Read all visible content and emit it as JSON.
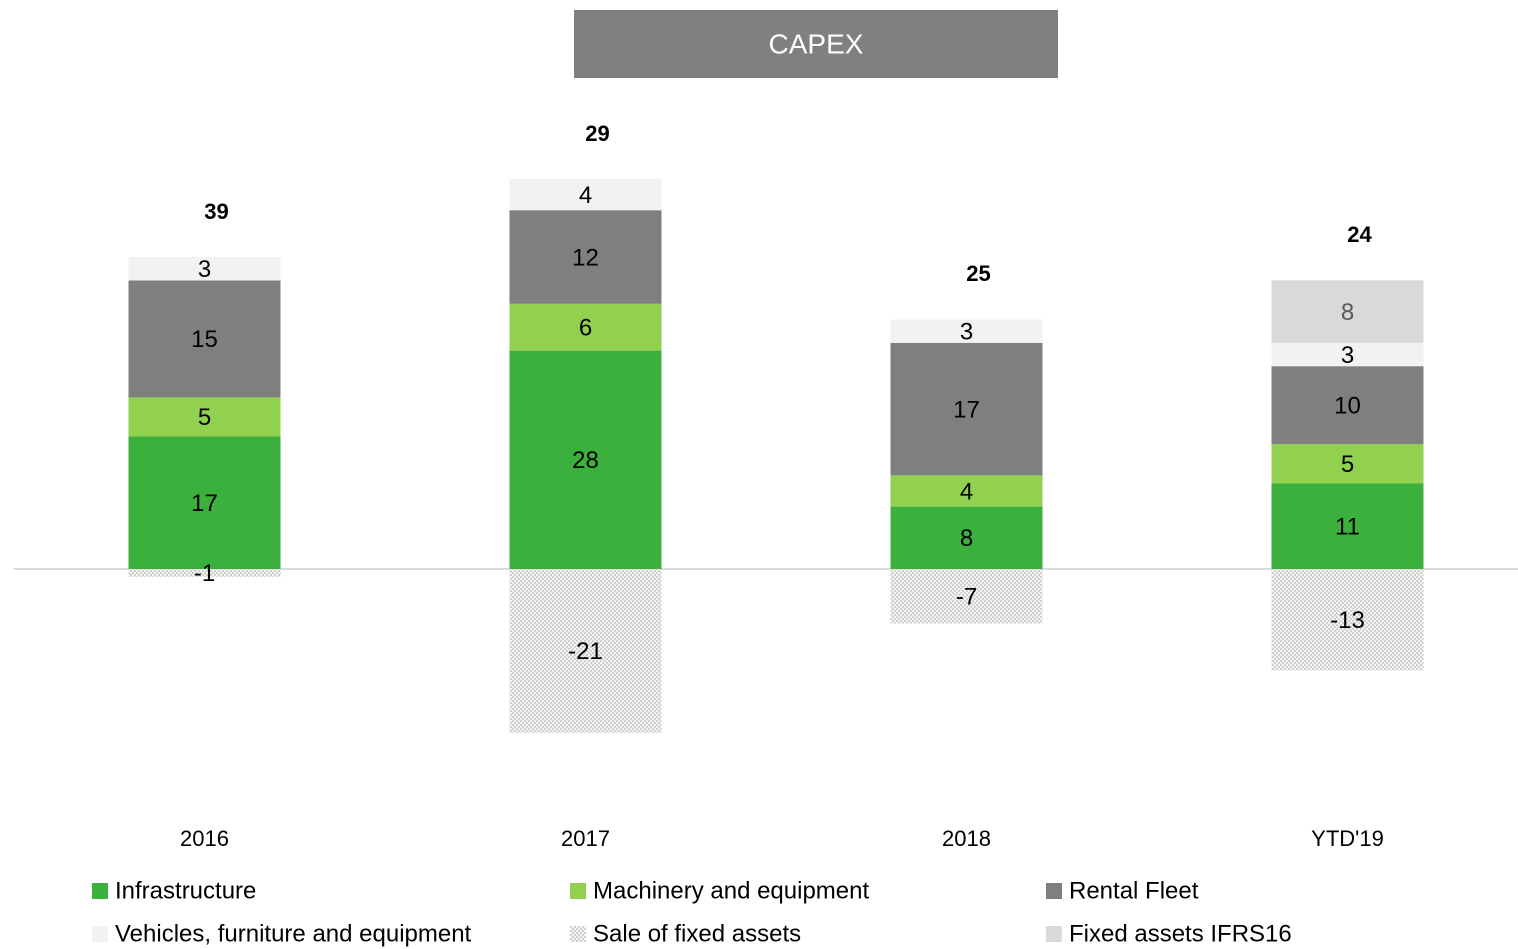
{
  "chart_data": {
    "type": "stacked-bar",
    "title": "CAPEX",
    "categories": [
      "2016",
      "2017",
      "2018",
      "YTD'19"
    ],
    "series": [
      {
        "name": "Infrastructure",
        "color": "#3cb03c",
        "values": [
          17,
          28,
          8,
          11
        ]
      },
      {
        "name": "Machinery and equipment",
        "color": "#92d050",
        "values": [
          5,
          6,
          4,
          5
        ]
      },
      {
        "name": "Rental Fleet",
        "color": "#7f7f7f",
        "values": [
          15,
          12,
          17,
          10
        ]
      },
      {
        "name": "Vehicles, furniture and equipment",
        "color": "#f2f2f2",
        "values": [
          3,
          4,
          3,
          3
        ]
      },
      {
        "name": "Sale of fixed assets",
        "color": "#d0d0d0",
        "pattern": "dots",
        "values": [
          -1,
          -21,
          -7,
          -13
        ]
      },
      {
        "name": "Fixed assets IFRS16",
        "color": "#d9d9d9",
        "label_color": "#595959",
        "values": [
          null,
          null,
          null,
          8
        ]
      }
    ],
    "totals": [
      39,
      29,
      25,
      24
    ],
    "legend": "bottom"
  }
}
